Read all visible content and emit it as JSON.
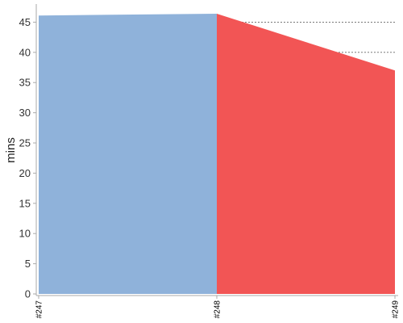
{
  "chart_data": {
    "type": "area",
    "title": "",
    "xlabel": "",
    "ylabel": "mins",
    "categories": [
      "#247",
      "#248",
      "#249"
    ],
    "series": [
      {
        "segments": [
          {
            "x": 0,
            "y": 46.1,
            "color": "#8fb2da"
          },
          {
            "x": 1,
            "y": 46.4,
            "color": "#8fb2da"
          },
          {
            "x": 1.5,
            "y": 41.7,
            "color": "#f25555"
          },
          {
            "x": 2,
            "y": 37.0,
            "color": "#f25555"
          }
        ]
      }
    ],
    "ylim": [
      0,
      48
    ],
    "yticks": [
      0,
      5,
      10,
      15,
      20,
      25,
      30,
      35,
      40,
      45
    ],
    "grid": true,
    "colors": {
      "passed": "#8fb2da",
      "failed": "#f25555"
    }
  }
}
